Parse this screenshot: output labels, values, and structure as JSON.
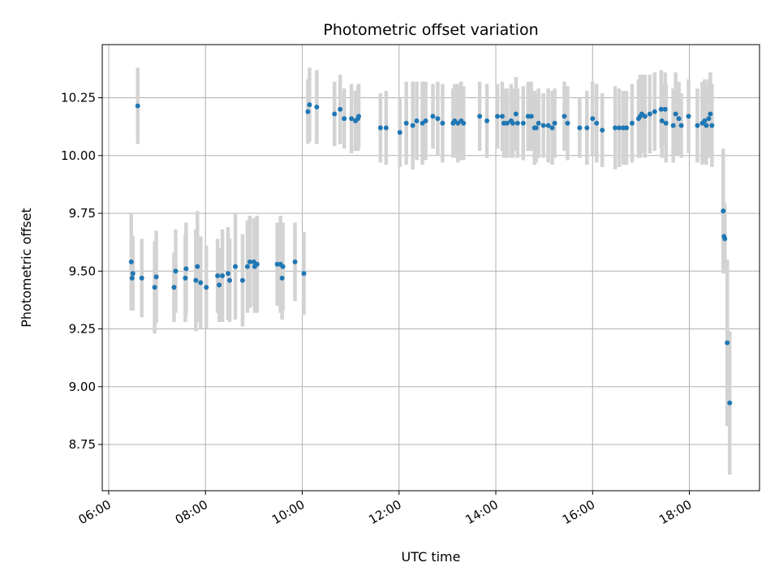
{
  "chart_data": {
    "type": "scatter",
    "title": "Photometric offset variation",
    "xlabel": "UTC time",
    "ylabel": "Photometric offset",
    "x_ticks": [
      "06:00",
      "08:00",
      "10:00",
      "12:00",
      "14:00",
      "16:00",
      "18:00"
    ],
    "y_ticks": [
      "8.75",
      "9.00",
      "9.25",
      "9.50",
      "9.75",
      "10.00",
      "10.25"
    ],
    "xlim": [
      "05:52",
      "19:27"
    ],
    "ylim": [
      8.55,
      10.48
    ],
    "grid": true,
    "colors": {
      "point": "#1f77b4",
      "errorbar": "#d3d3d3",
      "grid": "#b0b0b0"
    },
    "series": [
      {
        "points": [
          [
            "06:28",
            9.54,
            0.21
          ],
          [
            "06:29",
            9.47,
            0.14
          ],
          [
            "06:30",
            9.49,
            0.16
          ],
          [
            "06:36",
            10.215,
            0.165
          ],
          [
            "06:41",
            9.47,
            0.17
          ],
          [
            "06:57",
            9.43,
            0.2
          ],
          [
            "06:59",
            9.475,
            0.2
          ],
          [
            "07:21",
            9.43,
            0.15
          ],
          [
            "07:23",
            9.5,
            0.18
          ],
          [
            "07:35",
            9.47,
            0.19
          ],
          [
            "07:36",
            9.51,
            0.2
          ],
          [
            "07:48",
            9.46,
            0.22
          ],
          [
            "07:50",
            9.52,
            0.24
          ],
          [
            "07:54",
            9.45,
            0.2
          ],
          [
            "08:01",
            9.43,
            0.18
          ],
          [
            "08:15",
            9.48,
            0.16
          ],
          [
            "08:17",
            9.44,
            0.16
          ],
          [
            "08:21",
            9.48,
            0.2
          ],
          [
            "08:28",
            9.49,
            0.2
          ],
          [
            "08:30",
            9.46,
            0.18
          ],
          [
            "08:37",
            9.52,
            0.23
          ],
          [
            "08:46",
            9.46,
            0.2
          ],
          [
            "08:52",
            9.52,
            0.2
          ],
          [
            "08:55",
            9.54,
            0.2
          ],
          [
            "09:00",
            9.54,
            0.19
          ],
          [
            "09:01",
            9.52,
            0.2
          ],
          [
            "09:04",
            9.53,
            0.21
          ],
          [
            "09:29",
            9.53,
            0.18
          ],
          [
            "09:33",
            9.53,
            0.21
          ],
          [
            "09:35",
            9.47,
            0.18
          ],
          [
            "09:36",
            9.52,
            0.19
          ],
          [
            "09:51",
            9.54,
            0.17
          ],
          [
            "10:02",
            9.49,
            0.18
          ],
          [
            "10:07",
            10.19,
            0.14
          ],
          [
            "10:09",
            10.22,
            0.16
          ],
          [
            "10:18",
            10.21,
            0.16
          ],
          [
            "10:40",
            10.18,
            0.14
          ],
          [
            "10:47",
            10.2,
            0.15
          ],
          [
            "10:52",
            10.16,
            0.13
          ],
          [
            "11:01",
            10.16,
            0.15
          ],
          [
            "11:06",
            10.15,
            0.13
          ],
          [
            "11:09",
            10.16,
            0.14
          ],
          [
            "11:10",
            10.17,
            0.14
          ],
          [
            "11:37",
            10.12,
            0.15
          ],
          [
            "11:44",
            10.12,
            0.16
          ],
          [
            "12:01",
            10.1,
            0.15
          ],
          [
            "12:09",
            10.14,
            0.18
          ],
          [
            "12:17",
            10.13,
            0.19
          ],
          [
            "12:22",
            10.15,
            0.17
          ],
          [
            "12:29",
            10.14,
            0.18
          ],
          [
            "12:33",
            10.15,
            0.17
          ],
          [
            "12:42",
            10.17,
            0.14
          ],
          [
            "12:48",
            10.16,
            0.16
          ],
          [
            "12:54",
            10.14,
            0.17
          ],
          [
            "13:07",
            10.14,
            0.15
          ],
          [
            "13:09",
            10.15,
            0.16
          ],
          [
            "13:13",
            10.14,
            0.17
          ],
          [
            "13:17",
            10.15,
            0.17
          ],
          [
            "13:20",
            10.14,
            0.16
          ],
          [
            "13:40",
            10.17,
            0.15
          ],
          [
            "13:49",
            10.15,
            0.16
          ],
          [
            "14:02",
            10.17,
            0.14
          ],
          [
            "14:08",
            10.17,
            0.15
          ],
          [
            "14:10",
            10.14,
            0.15
          ],
          [
            "14:14",
            10.14,
            0.15
          ],
          [
            "14:19",
            10.15,
            0.16
          ],
          [
            "14:21",
            10.14,
            0.15
          ],
          [
            "14:25",
            10.18,
            0.16
          ],
          [
            "14:27",
            10.14,
            0.15
          ],
          [
            "14:34",
            10.14,
            0.16
          ],
          [
            "14:40",
            10.17,
            0.15
          ],
          [
            "14:44",
            10.17,
            0.15
          ],
          [
            "14:48",
            10.12,
            0.16
          ],
          [
            "14:50",
            10.12,
            0.15
          ],
          [
            "14:53",
            10.14,
            0.15
          ],
          [
            "14:59",
            10.13,
            0.14
          ],
          [
            "15:05",
            10.13,
            0.16
          ],
          [
            "15:10",
            10.12,
            0.16
          ],
          [
            "15:13",
            10.14,
            0.15
          ],
          [
            "15:25",
            10.17,
            0.15
          ],
          [
            "15:29",
            10.14,
            0.16
          ],
          [
            "15:44",
            10.12,
            0.13
          ],
          [
            "15:53",
            10.12,
            0.16
          ],
          [
            "16:00",
            10.16,
            0.16
          ],
          [
            "16:05",
            10.14,
            0.17
          ],
          [
            "16:12",
            10.11,
            0.16
          ],
          [
            "16:28",
            10.12,
            0.18
          ],
          [
            "16:33",
            10.12,
            0.17
          ],
          [
            "16:38",
            10.12,
            0.16
          ],
          [
            "16:42",
            10.12,
            0.16
          ],
          [
            "16:49",
            10.14,
            0.17
          ],
          [
            "16:57",
            10.16,
            0.17
          ],
          [
            "16:59",
            10.17,
            0.18
          ],
          [
            "17:01",
            10.18,
            0.17
          ],
          [
            "17:05",
            10.17,
            0.18
          ],
          [
            "17:11",
            10.18,
            0.17
          ],
          [
            "17:17",
            10.19,
            0.17
          ],
          [
            "17:25",
            10.2,
            0.17
          ],
          [
            "17:26",
            10.15,
            0.16
          ],
          [
            "17:30",
            10.2,
            0.16
          ],
          [
            "17:31",
            10.14,
            0.17
          ],
          [
            "17:40",
            10.13,
            0.16
          ],
          [
            "17:43",
            10.18,
            0.18
          ],
          [
            "17:47",
            10.16,
            0.16
          ],
          [
            "17:50",
            10.13,
            0.14
          ],
          [
            "17:59",
            10.17,
            0.16
          ],
          [
            "18:10",
            10.13,
            0.16
          ],
          [
            "18:16",
            10.14,
            0.18
          ],
          [
            "18:19",
            10.15,
            0.18
          ],
          [
            "18:21",
            10.13,
            0.17
          ],
          [
            "18:24",
            10.16,
            0.17
          ],
          [
            "18:26",
            10.18,
            0.18
          ],
          [
            "18:28",
            10.13,
            0.18
          ],
          [
            "18:42",
            9.76,
            0.27
          ],
          [
            "18:43",
            9.65,
            0.15
          ],
          [
            "18:44",
            9.64,
            0.15
          ],
          [
            "18:47",
            9.19,
            0.36
          ],
          [
            "18:50",
            8.93,
            0.31
          ]
        ]
      }
    ]
  }
}
